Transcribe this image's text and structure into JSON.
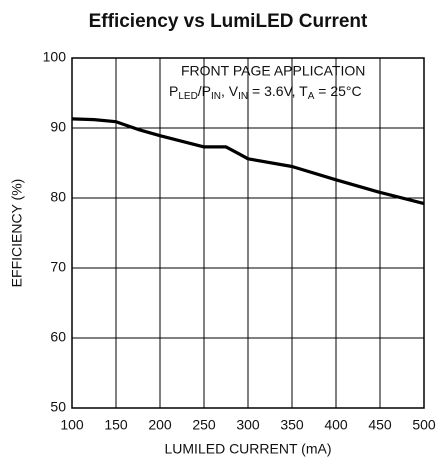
{
  "chart_data": {
    "type": "line",
    "title": "Efficiency vs LumiLED Current",
    "x_label": "LUMILED CURRENT (mA)",
    "y_label": "EFFICIENCY (%)",
    "annotation_line1": "FRONT PAGE APPLICATION",
    "annotation_line2_parts": [
      "P",
      "LED",
      "/P",
      "IN",
      ", V",
      "IN",
      " = 3.6V, T",
      "A",
      " = 25°C"
    ],
    "x": [
      100,
      125,
      150,
      175,
      200,
      225,
      250,
      275,
      290,
      300,
      350,
      400,
      450,
      500
    ],
    "series": [
      {
        "color": "#000000",
        "values": [
          91.3,
          91.2,
          90.9,
          89.8,
          88.9,
          88.1,
          87.3,
          87.3,
          86.3,
          85.6,
          84.5,
          82.6,
          80.8,
          79.2
        ]
      }
    ],
    "xlim": [
      100,
      500
    ],
    "xticks": [
      100,
      150,
      200,
      250,
      300,
      350,
      400,
      450,
      500
    ],
    "ylim": [
      50,
      100
    ],
    "yticks": [
      50,
      60,
      70,
      80,
      90,
      100
    ],
    "grid": true
  }
}
